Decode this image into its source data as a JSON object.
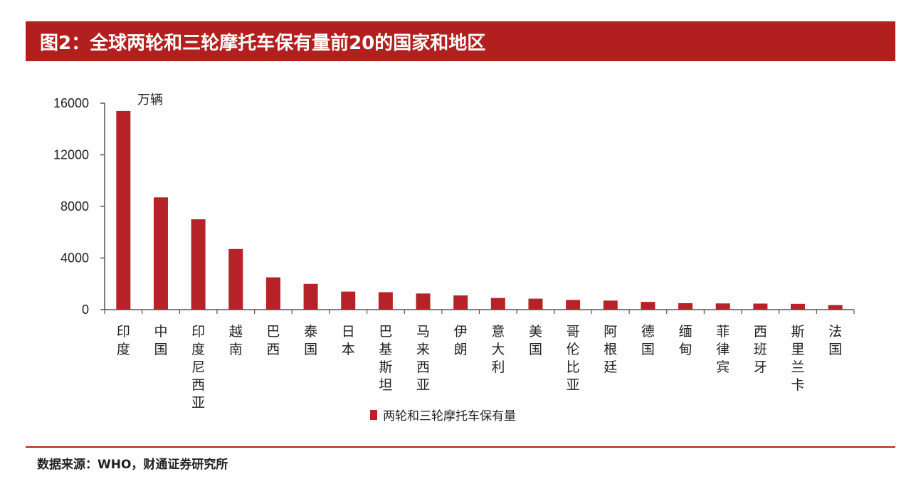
{
  "header": {
    "title": "图2：全球两轮和三轮摩托车保有量前20的国家和地区"
  },
  "footer": {
    "source": "数据来源：WHO，财通证券研究所"
  },
  "colors": {
    "accent": "#b21f1f",
    "bar": "#b52227",
    "text": "#222222"
  },
  "chart_data": {
    "type": "bar",
    "unit_label": "万辆",
    "categories": [
      "印度",
      "中国",
      "印度尼西亚",
      "越南",
      "巴西",
      "泰国",
      "日本",
      "巴基斯坦",
      "马来西亚",
      "伊朗",
      "意大利",
      "美国",
      "哥伦比亚",
      "阿根廷",
      "德国",
      "缅甸",
      "菲律宾",
      "西班牙",
      "斯里兰卡",
      "法国"
    ],
    "series": [
      {
        "name": "两轮和三轮摩托车保有量",
        "values": [
          15400,
          8700,
          7000,
          4700,
          2500,
          2000,
          1400,
          1350,
          1250,
          1100,
          900,
          850,
          750,
          700,
          600,
          500,
          480,
          470,
          450,
          350
        ]
      }
    ],
    "yticks": [
      0,
      4000,
      8000,
      12000,
      16000
    ],
    "ylim": [
      0,
      16000
    ],
    "legend_position": "bottom",
    "grid": false
  }
}
